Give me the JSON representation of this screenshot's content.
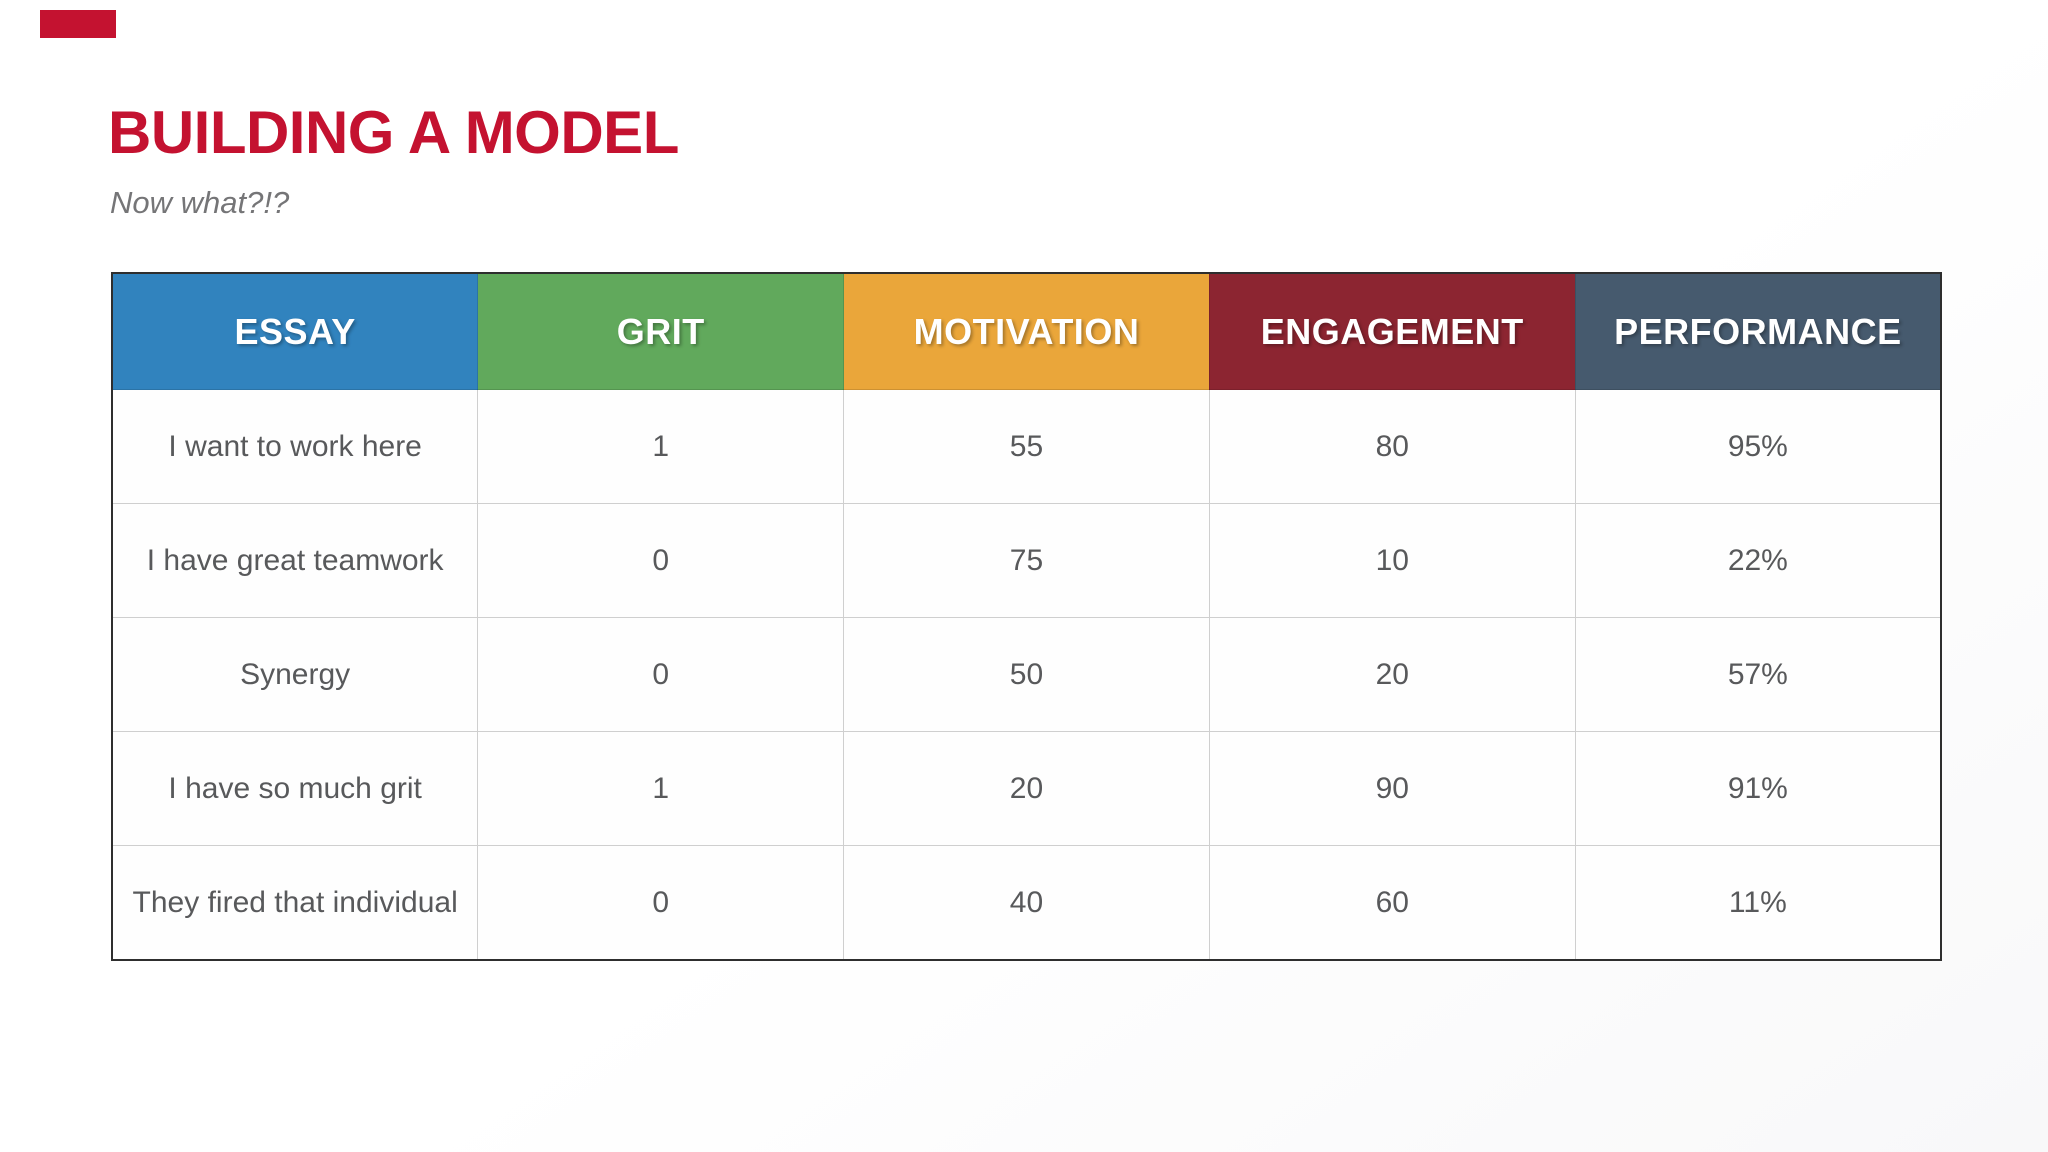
{
  "slide": {
    "title": "BUILDING A MODEL",
    "subtitle": "Now what?!?",
    "accent_red": "#c41230",
    "subtitle_color": "#757577",
    "background": "#ffffff"
  },
  "table": {
    "columns": [
      {
        "label": "ESSAY",
        "header_color": "#3183be"
      },
      {
        "label": "GRIT",
        "header_color": "#61a95c"
      },
      {
        "label": "MOTIVATION",
        "header_color": "#eaa63a"
      },
      {
        "label": "ENGAGEMENT",
        "header_color": "#8c2531"
      },
      {
        "label": "PERFORMANCE",
        "header_color": "#465a6e"
      }
    ],
    "essay_column_bg": "#f8e8c6",
    "performance_column_bg": "#deedda",
    "cell_text_color": "#58595b",
    "header_text_color": "#ffffff",
    "outer_border_color": "#2e2e2e",
    "gridline_color": "#cfcfcf",
    "rows": [
      {
        "essay": "I want to work here",
        "grit": "1",
        "motivation": "55",
        "engagement": "80",
        "performance": "95%"
      },
      {
        "essay": "I have great teamwork",
        "grit": "0",
        "motivation": "75",
        "engagement": "10",
        "performance": "22%"
      },
      {
        "essay": "Synergy",
        "grit": "0",
        "motivation": "50",
        "engagement": "20",
        "performance": "57%"
      },
      {
        "essay": "I have so much grit",
        "grit": "1",
        "motivation": "20",
        "engagement": "90",
        "performance": "91%"
      },
      {
        "essay": "They fired that individual",
        "grit": "0",
        "motivation": "40",
        "engagement": "60",
        "performance": "11%"
      }
    ]
  },
  "chart_data": {
    "type": "table",
    "title": "BUILDING A MODEL",
    "categories": [
      "ESSAY",
      "GRIT",
      "MOTIVATION",
      "ENGAGEMENT",
      "PERFORMANCE"
    ],
    "series": [
      {
        "name": "I want to work here",
        "values": [
          1,
          55,
          80,
          "95%"
        ]
      },
      {
        "name": "I have great teamwork",
        "values": [
          0,
          75,
          10,
          "22%"
        ]
      },
      {
        "name": "Synergy",
        "values": [
          0,
          50,
          20,
          "57%"
        ]
      },
      {
        "name": "I have so much grit",
        "values": [
          1,
          20,
          90,
          "91%"
        ]
      },
      {
        "name": "They fired that individual",
        "values": [
          0,
          40,
          60,
          "11%"
        ]
      }
    ]
  }
}
